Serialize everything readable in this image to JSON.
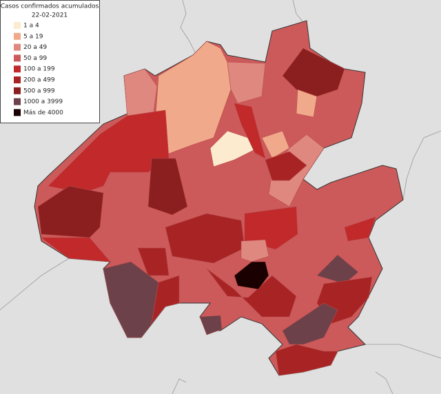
{
  "legend": {
    "title": "Casos confirmados acumulados",
    "date": "22-02-2021",
    "items": [
      {
        "label": "1 a 4",
        "color": "#fcebcf"
      },
      {
        "label": "5 a 19",
        "color": "#f0a98a"
      },
      {
        "label": "20 a 49",
        "color": "#df8880"
      },
      {
        "label": "50 a 99",
        "color": "#cd5a5b"
      },
      {
        "label": "100 a 199",
        "color": "#c1292b"
      },
      {
        "label": "200 a 499",
        "color": "#a82424"
      },
      {
        "label": "500 a 999",
        "color": "#8b1e1e"
      },
      {
        "label": "1000 a 3999",
        "color": "#6c414a"
      },
      {
        "label": "Más de 4000",
        "color": "#1a0000"
      }
    ]
  }
}
